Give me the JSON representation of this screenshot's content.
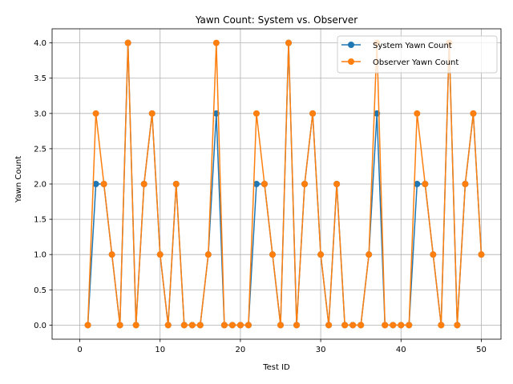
{
  "chart_data": {
    "type": "line",
    "title": "Yawn Count: System vs. Observer",
    "xlabel": "Test ID",
    "ylabel": "Yawn Count",
    "xlim": [
      -3.45,
      52.45
    ],
    "ylim": [
      -0.2,
      4.2
    ],
    "xticks": [
      0,
      10,
      20,
      30,
      40,
      50
    ],
    "yticks": [
      0.0,
      0.5,
      1.0,
      1.5,
      2.0,
      2.5,
      3.0,
      3.5,
      4.0
    ],
    "xtick_labels": [
      "0",
      "10",
      "20",
      "30",
      "40",
      "50"
    ],
    "ytick_labels": [
      "0.0",
      "0.5",
      "1.0",
      "1.5",
      "2.0",
      "2.5",
      "3.0",
      "3.5",
      "4.0"
    ],
    "grid": true,
    "legend_position": "top-right",
    "x": [
      1,
      2,
      3,
      4,
      5,
      6,
      7,
      8,
      9,
      10,
      11,
      12,
      13,
      14,
      15,
      16,
      17,
      18,
      19,
      20,
      21,
      22,
      23,
      24,
      25,
      26,
      27,
      28,
      29,
      30,
      31,
      32,
      33,
      34,
      35,
      36,
      37,
      38,
      39,
      40,
      41,
      42,
      43,
      44,
      45,
      46,
      47,
      48,
      49,
      50
    ],
    "series": [
      {
        "name": "System Yawn Count",
        "color": "#1f77b4",
        "values": [
          0,
          2,
          2,
          1,
          0,
          4,
          0,
          2,
          3,
          1,
          0,
          2,
          0,
          0,
          0,
          1,
          3,
          0,
          0,
          0,
          0,
          2,
          2,
          1,
          0,
          4,
          0,
          2,
          3,
          1,
          0,
          2,
          0,
          0,
          0,
          1,
          3,
          0,
          0,
          0,
          0,
          2,
          2,
          1,
          0,
          4,
          0,
          2,
          3,
          1
        ]
      },
      {
        "name": "Observer Yawn Count",
        "color": "#ff7f0e",
        "values": [
          0,
          3,
          2,
          1,
          0,
          4,
          0,
          2,
          3,
          1,
          0,
          2,
          0,
          0,
          0,
          1,
          4,
          0,
          0,
          0,
          0,
          3,
          2,
          1,
          0,
          4,
          0,
          2,
          3,
          1,
          0,
          2,
          0,
          0,
          0,
          1,
          4,
          0,
          0,
          0,
          0,
          3,
          2,
          1,
          0,
          4,
          0,
          2,
          3,
          1
        ]
      }
    ]
  }
}
